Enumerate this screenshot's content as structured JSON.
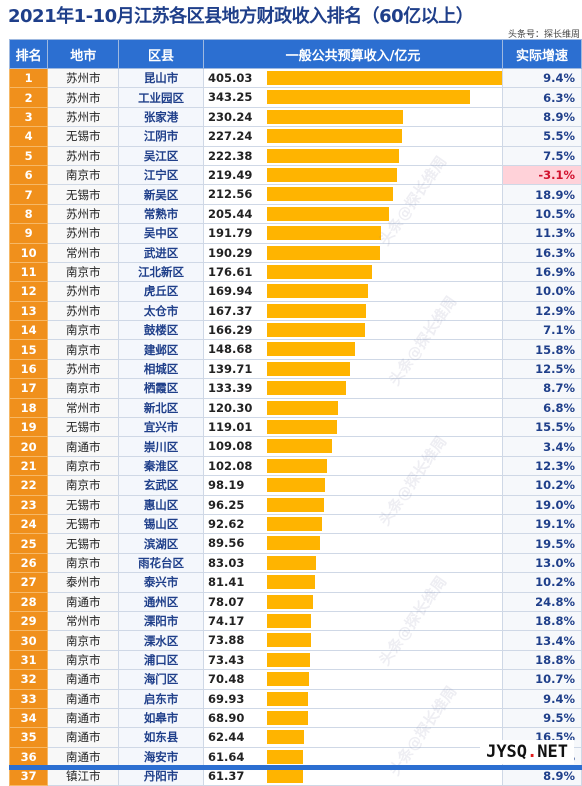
{
  "title": "2021年1-10月江苏各区县地方财政收入排名（60亿以上）",
  "source": "头条号：探长维周",
  "watermark": "头条@探长维周",
  "logo": {
    "a": "JYSQ",
    "dot": ".",
    "b": "NET"
  },
  "colors": {
    "header": "#2c6fd1",
    "rank": "#f0901c",
    "bar": "#ffb400",
    "negative": "#d2122e"
  },
  "chart_data": {
    "type": "table",
    "columns": [
      "排名",
      "地市",
      "区县",
      "一般公共预算收入/亿元",
      "实际增速"
    ],
    "rows": [
      {
        "rank": "1",
        "city": "苏州市",
        "district": "昆山市",
        "revenue": 405.03,
        "growth": "9.4%"
      },
      {
        "rank": "2",
        "city": "苏州市",
        "district": "工业园区",
        "revenue": 343.25,
        "growth": "6.3%"
      },
      {
        "rank": "3",
        "city": "苏州市",
        "district": "张家港",
        "revenue": 230.24,
        "growth": "8.9%"
      },
      {
        "rank": "4",
        "city": "无锡市",
        "district": "江阴市",
        "revenue": 227.24,
        "growth": "5.5%"
      },
      {
        "rank": "5",
        "city": "苏州市",
        "district": "吴江区",
        "revenue": 222.38,
        "growth": "7.5%"
      },
      {
        "rank": "6",
        "city": "南京市",
        "district": "江宁区",
        "revenue": 219.49,
        "growth": "-3.1%"
      },
      {
        "rank": "7",
        "city": "无锡市",
        "district": "新吴区",
        "revenue": 212.56,
        "growth": "18.9%"
      },
      {
        "rank": "8",
        "city": "苏州市",
        "district": "常熟市",
        "revenue": 205.44,
        "growth": "10.5%"
      },
      {
        "rank": "9",
        "city": "苏州市",
        "district": "吴中区",
        "revenue": 191.79,
        "growth": "11.3%"
      },
      {
        "rank": "10",
        "city": "常州市",
        "district": "武进区",
        "revenue": 190.29,
        "growth": "16.3%"
      },
      {
        "rank": "11",
        "city": "南京市",
        "district": "江北新区",
        "revenue": 176.61,
        "growth": "16.9%"
      },
      {
        "rank": "12",
        "city": "苏州市",
        "district": "虎丘区",
        "revenue": 169.94,
        "growth": "10.0%"
      },
      {
        "rank": "13",
        "city": "苏州市",
        "district": "太仓市",
        "revenue": 167.37,
        "growth": "12.9%"
      },
      {
        "rank": "14",
        "city": "南京市",
        "district": "鼓楼区",
        "revenue": 166.29,
        "growth": "7.1%"
      },
      {
        "rank": "15",
        "city": "南京市",
        "district": "建邺区",
        "revenue": 148.68,
        "growth": "15.8%"
      },
      {
        "rank": "16",
        "city": "苏州市",
        "district": "相城区",
        "revenue": 139.71,
        "growth": "12.5%"
      },
      {
        "rank": "17",
        "city": "南京市",
        "district": "栖霞区",
        "revenue": 133.39,
        "growth": "8.7%"
      },
      {
        "rank": "18",
        "city": "常州市",
        "district": "新北区",
        "revenue": 120.3,
        "growth": "6.8%"
      },
      {
        "rank": "19",
        "city": "无锡市",
        "district": "宜兴市",
        "revenue": 119.01,
        "growth": "15.5%"
      },
      {
        "rank": "20",
        "city": "南通市",
        "district": "崇川区",
        "revenue": 109.08,
        "growth": "3.4%"
      },
      {
        "rank": "21",
        "city": "南京市",
        "district": "秦淮区",
        "revenue": 102.08,
        "growth": "12.3%"
      },
      {
        "rank": "22",
        "city": "南京市",
        "district": "玄武区",
        "revenue": 98.19,
        "growth": "10.2%"
      },
      {
        "rank": "23",
        "city": "无锡市",
        "district": "惠山区",
        "revenue": 96.25,
        "growth": "19.0%"
      },
      {
        "rank": "24",
        "city": "无锡市",
        "district": "锡山区",
        "revenue": 92.62,
        "growth": "19.1%"
      },
      {
        "rank": "25",
        "city": "无锡市",
        "district": "滨湖区",
        "revenue": 89.56,
        "growth": "19.5%"
      },
      {
        "rank": "26",
        "city": "南京市",
        "district": "雨花台区",
        "revenue": 83.03,
        "growth": "13.0%"
      },
      {
        "rank": "27",
        "city": "泰州市",
        "district": "泰兴市",
        "revenue": 81.41,
        "growth": "10.2%"
      },
      {
        "rank": "28",
        "city": "南通市",
        "district": "通州区",
        "revenue": 78.07,
        "growth": "24.8%"
      },
      {
        "rank": "29",
        "city": "常州市",
        "district": "溧阳市",
        "revenue": 74.17,
        "growth": "18.8%"
      },
      {
        "rank": "30",
        "city": "南京市",
        "district": "溧水区",
        "revenue": 73.88,
        "growth": "13.4%"
      },
      {
        "rank": "31",
        "city": "南京市",
        "district": "浦口区",
        "revenue": 73.43,
        "growth": "18.8%"
      },
      {
        "rank": "32",
        "city": "南通市",
        "district": "海门区",
        "revenue": 70.48,
        "growth": "10.7%"
      },
      {
        "rank": "33",
        "city": "南通市",
        "district": "启东市",
        "revenue": 69.93,
        "growth": "9.4%"
      },
      {
        "rank": "34",
        "city": "南通市",
        "district": "如皋市",
        "revenue": 68.9,
        "growth": "9.5%"
      },
      {
        "rank": "35",
        "city": "南通市",
        "district": "如东县",
        "revenue": 62.44,
        "growth": "16.5%"
      },
      {
        "rank": "36",
        "city": "南通市",
        "district": "海安市",
        "revenue": 61.64,
        "growth": "7.1%"
      },
      {
        "rank": "37",
        "city": "镇江市",
        "district": "丹阳市",
        "revenue": 61.37,
        "growth": "8.9%"
      }
    ],
    "revenue_max": 405.03
  }
}
